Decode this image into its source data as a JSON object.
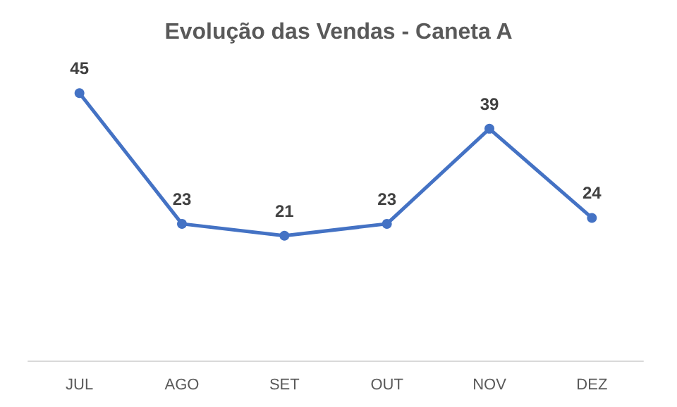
{
  "chart_data": {
    "type": "line",
    "title": "Evolução das Vendas - Caneta A",
    "categories": [
      "JUL",
      "AGO",
      "SET",
      "OUT",
      "NOV",
      "DEZ"
    ],
    "series": [
      {
        "color": "#4472c4",
        "values": [
          45,
          23,
          21,
          23,
          39,
          24
        ]
      }
    ],
    "tick_labels": "x",
    "grid": false,
    "marker": "circle",
    "line_style": "solid",
    "data_labels": true
  }
}
